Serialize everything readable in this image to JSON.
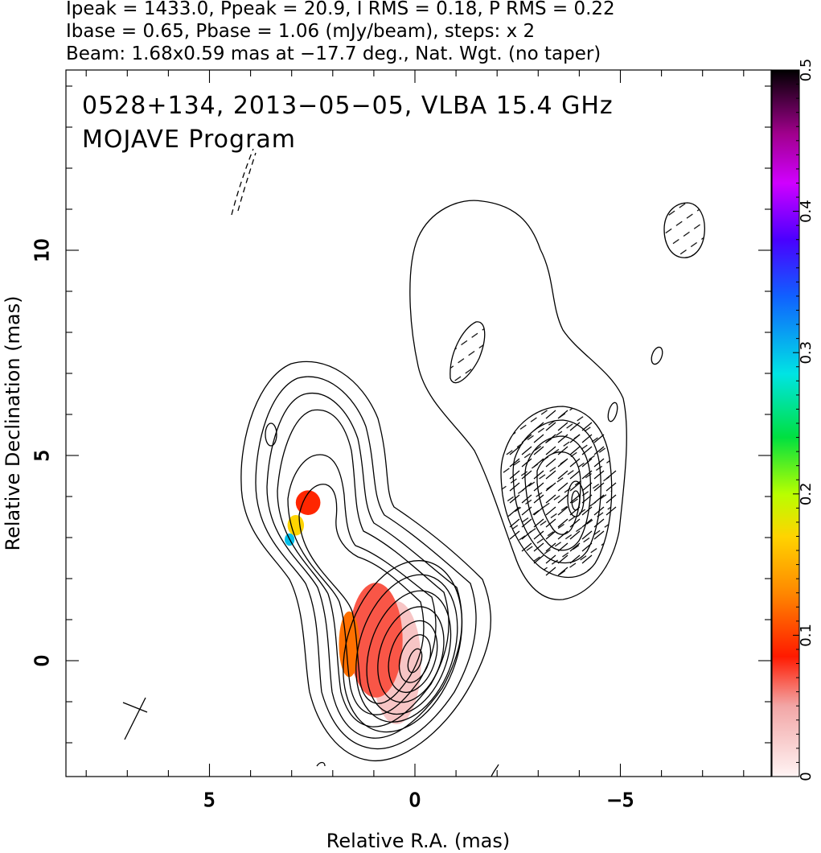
{
  "header": {
    "line1": "Ipeak = 1433.0, Ppeak = 20.9, I RMS = 0.18, P RMS = 0.22",
    "line2": "Ibase = 0.65, Pbase = 1.06 (mJy/beam), steps: x 2",
    "line3": "Beam: 1.68x0.59 mas at −17.7 deg., Nat. Wgt. (no taper)"
  },
  "plot": {
    "title_line1": "0528+134, 2013−05−05, VLBA 15.4 GHz",
    "title_line2": "MOJAVE Program"
  },
  "chart_data": {
    "type": "heatmap",
    "description_type": "radio contour map with fractional polarization color overlay",
    "xlabel": "Relative R.A. (mas)",
    "ylabel": "Relative Declination (mas)",
    "xlim": [
      8.5,
      -8.5
    ],
    "ylim": [
      -2.8,
      14.4
    ],
    "x_ticks": [
      {
        "value": 5,
        "label": "5"
      },
      {
        "value": 0,
        "label": "0"
      },
      {
        "value": -5,
        "label": "−5"
      }
    ],
    "y_ticks": [
      {
        "value": 0,
        "label": "0"
      },
      {
        "value": 5,
        "label": "5"
      },
      {
        "value": 10,
        "label": "10"
      }
    ],
    "colorbar": {
      "range": [
        0,
        0.5
      ],
      "ticks": [
        {
          "value": 0,
          "label": "0"
        },
        {
          "value": 0.1,
          "label": "0.1"
        },
        {
          "value": 0.2,
          "label": "0.2"
        },
        {
          "value": 0.3,
          "label": "0.3"
        },
        {
          "value": 0.4,
          "label": "0.4"
        },
        {
          "value": 0.5,
          "label": "0.5"
        }
      ]
    },
    "stats": {
      "Ipeak_mJy_per_beam": 1433.0,
      "Ppeak_mJy_per_beam": 20.9,
      "I_RMS": 0.18,
      "P_RMS": 0.22,
      "Ibase": 0.65,
      "Pbase": 1.06,
      "contour_step_factor": 2
    },
    "beam": {
      "major_mas": 1.68,
      "minor_mas": 0.59,
      "pa_deg": -17.7
    },
    "core_contours": [
      {
        "x": 0.0,
        "y": 0.0,
        "rx": 0.15,
        "ry": 0.3
      },
      {
        "x": 0.0,
        "y": 0.05,
        "rx": 0.35,
        "ry": 0.6
      },
      {
        "x": 0.05,
        "y": 0.1,
        "rx": 0.55,
        "ry": 0.9
      },
      {
        "x": 0.1,
        "y": 0.15,
        "rx": 0.75,
        "ry": 1.2
      },
      {
        "x": 0.15,
        "y": 0.2,
        "rx": 0.95,
        "ry": 1.55
      },
      {
        "x": 0.2,
        "y": 0.3,
        "rx": 1.15,
        "ry": 1.85
      },
      {
        "x": 0.3,
        "y": 0.35,
        "rx": 1.35,
        "ry": 2.15
      }
    ],
    "pol_patches": [
      {
        "x": 0.45,
        "y": -0.05,
        "rx": 0.6,
        "ry": 1.5,
        "fpol": 0.03
      },
      {
        "x": 0.95,
        "y": 0.5,
        "rx": 0.65,
        "ry": 1.4,
        "fpol": 0.07
      },
      {
        "x": 1.6,
        "y": 0.4,
        "rx": 0.25,
        "ry": 0.8,
        "fpol": 0.12
      },
      {
        "x": 2.6,
        "y": 3.85,
        "rx": 0.3,
        "ry": 0.3,
        "fpol": 0.09
      },
      {
        "x": 2.9,
        "y": 3.3,
        "rx": 0.2,
        "ry": 0.25,
        "fpol": 0.17
      },
      {
        "x": 3.05,
        "y": 2.95,
        "rx": 0.12,
        "ry": 0.15,
        "fpol": 0.3
      }
    ]
  }
}
